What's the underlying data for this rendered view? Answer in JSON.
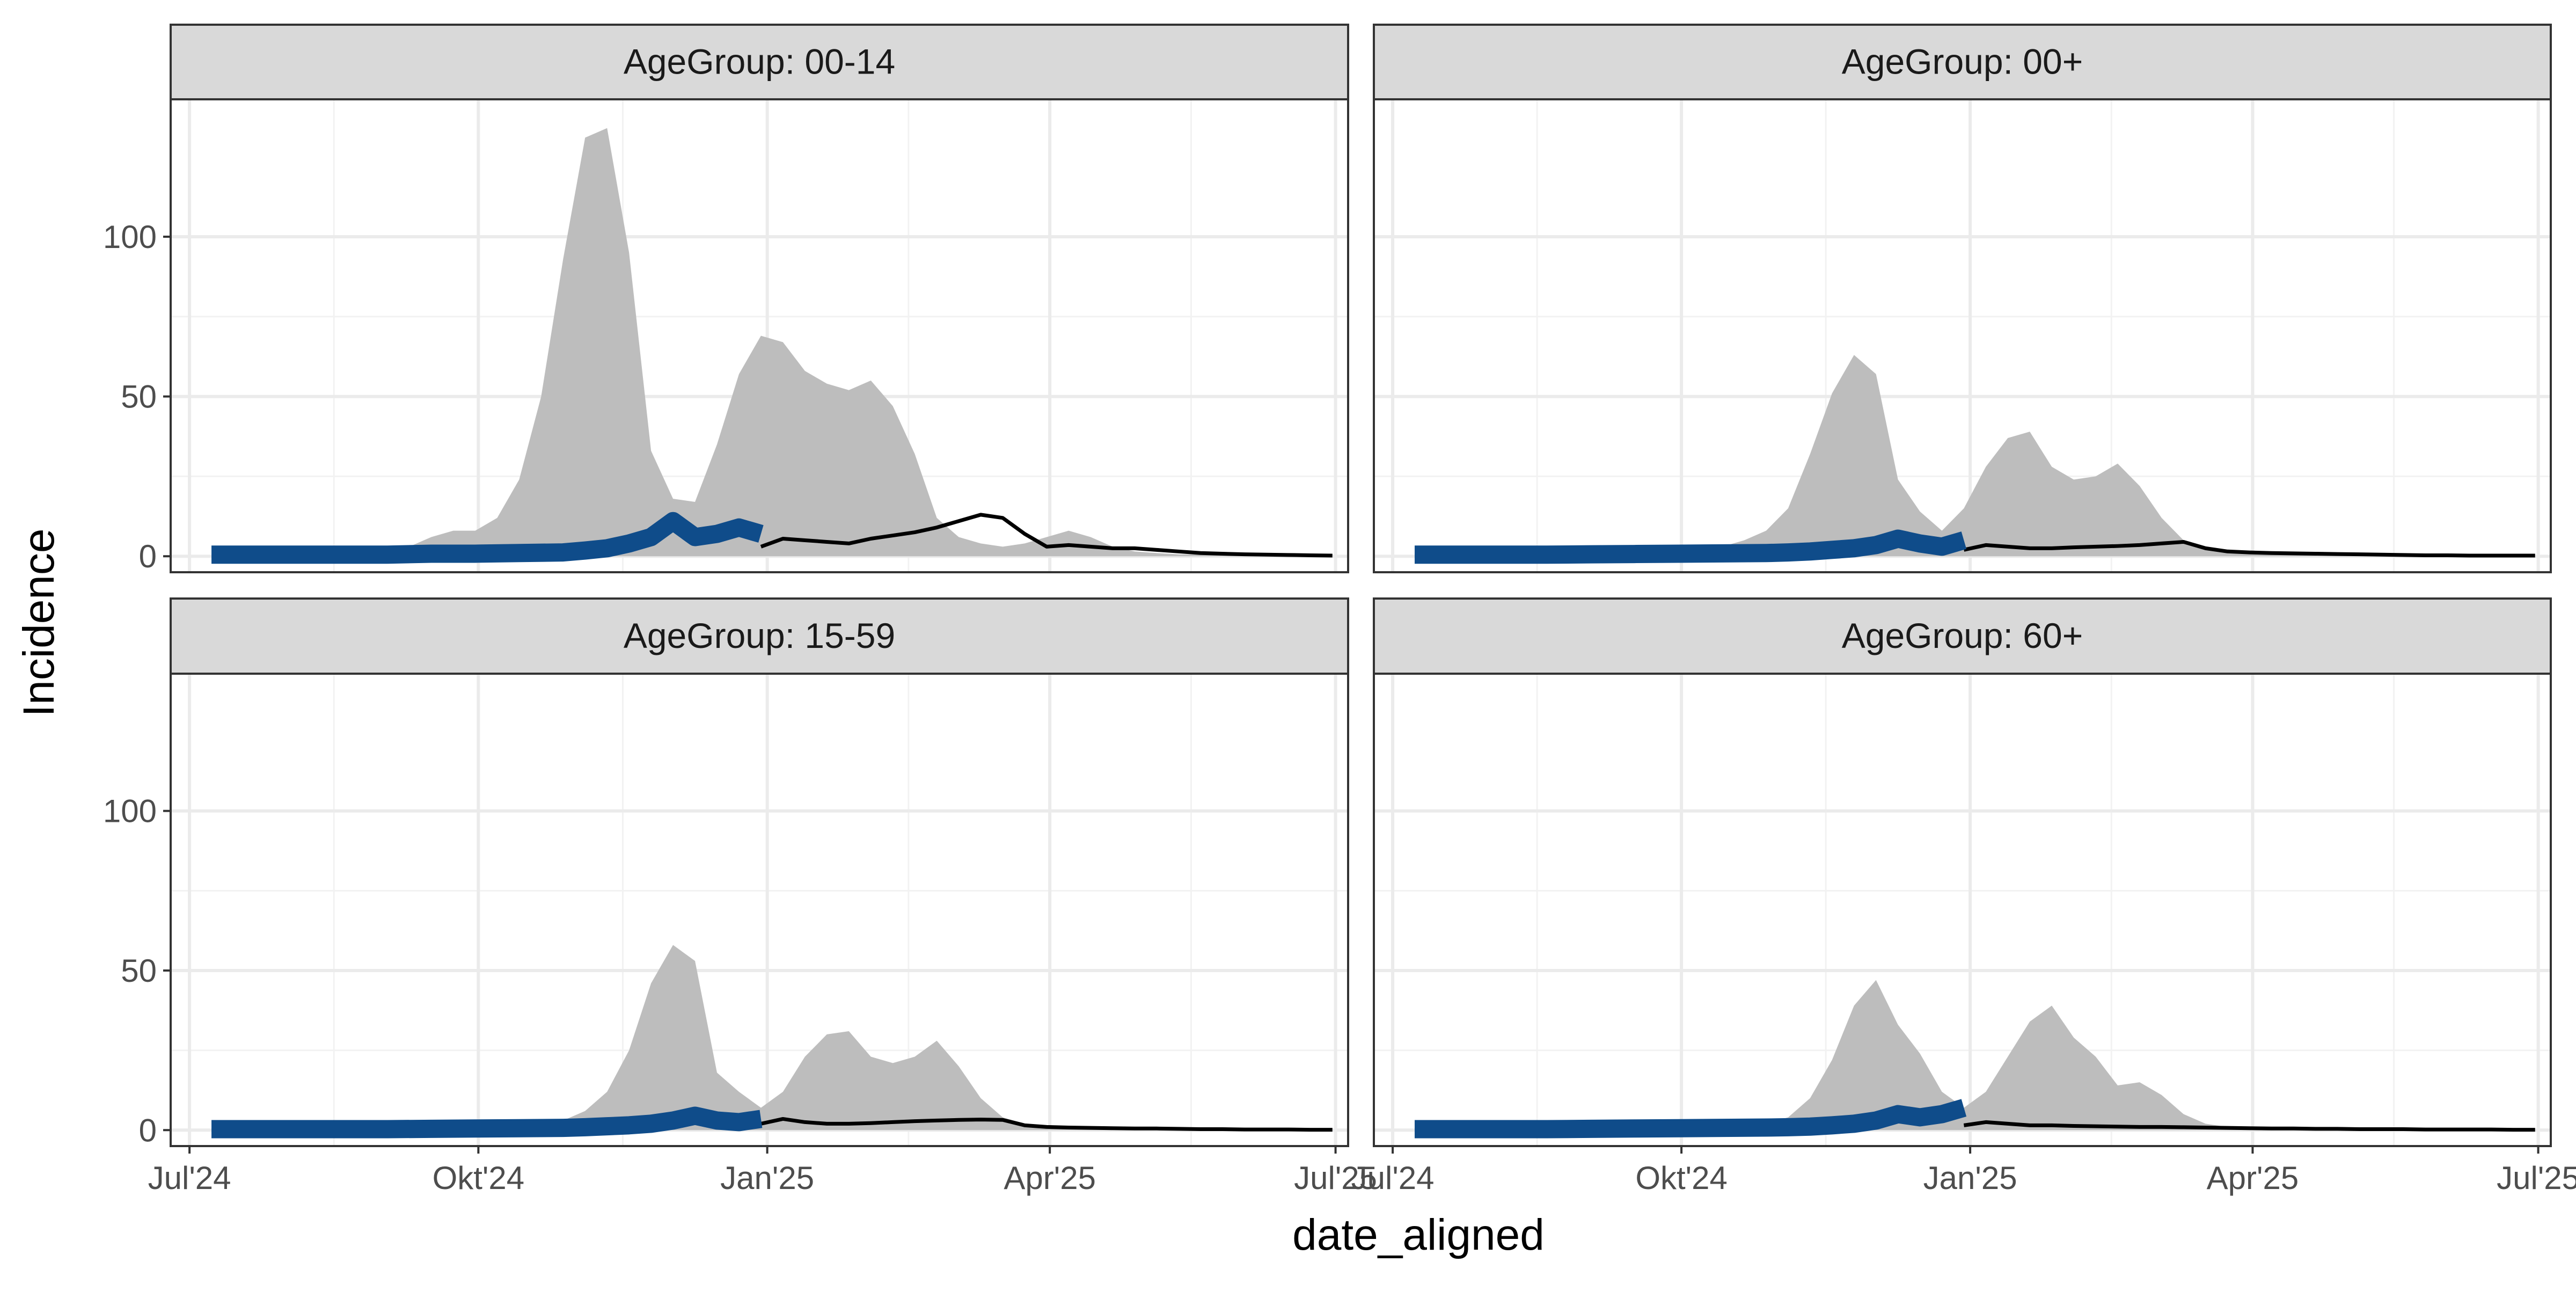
{
  "chart_data": {
    "type": "area",
    "xlabel": "date_aligned",
    "ylabel": "Incidence",
    "ylim": [
      -5,
      143
    ],
    "yticks": [
      0,
      50,
      100
    ],
    "xlim": [
      "2024-06-25",
      "2025-07-05"
    ],
    "xticks": [
      {
        "date": "2024-07-01",
        "label": "Jul'24"
      },
      {
        "date": "2024-10-01",
        "label": "Okt'24"
      },
      {
        "date": "2025-01-01",
        "label": "Jan'25"
      },
      {
        "date": "2025-04-01",
        "label": "Apr'25"
      },
      {
        "date": "2025-07-01",
        "label": "Jul'25"
      }
    ],
    "grid": true,
    "colors": {
      "band_fill": "#bdbdbd",
      "observed_line": "#0f4c8a",
      "median_line": "#000000",
      "panel_border": "#333333",
      "strip_fill": "#d9d9d9",
      "grid": "#ebebeb"
    },
    "panels": [
      {
        "strip_label": "AgeGroup: 00-14",
        "band_dates": [
          "2024-07-29",
          "2024-08-05",
          "2024-08-12",
          "2024-08-19",
          "2024-08-26",
          "2024-09-02",
          "2024-09-09",
          "2024-09-16",
          "2024-09-23",
          "2024-09-30",
          "2024-10-07",
          "2024-10-14",
          "2024-10-21",
          "2024-10-28",
          "2024-11-04",
          "2024-11-11",
          "2024-11-18",
          "2024-11-25",
          "2024-12-02",
          "2024-12-09",
          "2024-12-16",
          "2024-12-23",
          "2024-12-30",
          "2025-01-06",
          "2025-01-13",
          "2025-01-20",
          "2025-01-27",
          "2025-02-03",
          "2025-02-10",
          "2025-02-17",
          "2025-02-24",
          "2025-03-03",
          "2025-03-10",
          "2025-03-17",
          "2025-03-24",
          "2025-03-31",
          "2025-04-07",
          "2025-04-14",
          "2025-04-21",
          "2025-04-28",
          "2025-05-05",
          "2025-05-12",
          "2025-05-19",
          "2025-05-26",
          "2025-06-02",
          "2025-06-09"
        ],
        "band_upper": [
          0.5,
          0.5,
          0.8,
          1,
          1,
          1.5,
          3,
          6,
          8,
          8,
          12,
          24,
          50,
          93,
          131,
          134,
          95,
          33,
          18,
          17,
          35,
          57,
          69,
          67,
          58,
          54,
          52,
          55,
          47,
          32,
          12,
          6,
          4,
          3,
          4,
          6,
          8,
          6,
          3,
          1.5,
          1,
          0.6,
          0.5,
          0.4,
          0.3,
          0.2
        ],
        "observed": {
          "dates": [
            "2024-07-08",
            "2024-07-22",
            "2024-08-05",
            "2024-08-19",
            "2024-09-02",
            "2024-09-16",
            "2024-09-30",
            "2024-10-14",
            "2024-10-28",
            "2024-11-04",
            "2024-11-11",
            "2024-11-18",
            "2024-11-25",
            "2024-12-02",
            "2024-12-09",
            "2024-12-16",
            "2024-12-23",
            "2024-12-30"
          ],
          "values": [
            0.5,
            0.5,
            0.5,
            0.5,
            0.5,
            0.8,
            0.8,
            1,
            1.2,
            1.8,
            2.5,
            4,
            6,
            11,
            6,
            7,
            9,
            7
          ]
        },
        "median": {
          "dates": [
            "2024-12-30",
            "2025-01-06",
            "2025-01-13",
            "2025-01-20",
            "2025-01-27",
            "2025-02-03",
            "2025-02-10",
            "2025-02-17",
            "2025-02-24",
            "2025-03-03",
            "2025-03-10",
            "2025-03-17",
            "2025-03-24",
            "2025-03-31",
            "2025-04-07",
            "2025-04-14",
            "2025-04-21",
            "2025-04-28",
            "2025-05-05",
            "2025-05-12",
            "2025-05-19",
            "2025-05-26",
            "2025-06-02",
            "2025-06-09",
            "2025-06-16",
            "2025-06-23",
            "2025-06-30"
          ],
          "values": [
            3,
            5.5,
            5,
            4.5,
            4,
            5.5,
            6.5,
            7.5,
            9,
            11,
            13,
            12,
            7,
            3,
            3.5,
            3,
            2.5,
            2.5,
            2,
            1.5,
            1,
            0.8,
            0.6,
            0.5,
            0.4,
            0.3,
            0.2
          ]
        }
      },
      {
        "strip_label": "AgeGroup: 00+",
        "band_dates": [
          "2024-09-16",
          "2024-09-23",
          "2024-09-30",
          "2024-10-07",
          "2024-10-14",
          "2024-10-21",
          "2024-10-28",
          "2024-11-04",
          "2024-11-11",
          "2024-11-18",
          "2024-11-25",
          "2024-12-02",
          "2024-12-09",
          "2024-12-16",
          "2024-12-23",
          "2024-12-30",
          "2025-01-06",
          "2025-01-13",
          "2025-01-20",
          "2025-01-27",
          "2025-02-03",
          "2025-02-10",
          "2025-02-17",
          "2025-02-24",
          "2025-03-03",
          "2025-03-10",
          "2025-03-17",
          "2025-03-24",
          "2025-03-31",
          "2025-04-07",
          "2025-04-14",
          "2025-04-21",
          "2025-04-28",
          "2025-05-05",
          "2025-05-12"
        ],
        "band_upper": [
          0.5,
          1,
          1.5,
          2,
          3,
          5,
          8,
          15,
          32,
          51,
          63,
          57,
          24,
          14,
          8,
          15,
          28,
          37,
          39,
          28,
          24,
          25,
          29,
          22,
          12,
          5,
          3,
          2,
          1.5,
          1.5,
          1.2,
          1,
          0.8,
          0.5,
          0.3
        ],
        "observed": {
          "dates": [
            "2024-07-08",
            "2024-07-22",
            "2024-08-05",
            "2024-08-19",
            "2024-09-02",
            "2024-09-16",
            "2024-09-30",
            "2024-10-14",
            "2024-10-28",
            "2024-11-04",
            "2024-11-11",
            "2024-11-18",
            "2024-11-25",
            "2024-12-02",
            "2024-12-09",
            "2024-12-16",
            "2024-12-23",
            "2024-12-30"
          ],
          "values": [
            0.5,
            0.5,
            0.5,
            0.5,
            0.6,
            0.7,
            0.8,
            0.9,
            1,
            1.2,
            1.5,
            2,
            2.5,
            3.5,
            5.5,
            4,
            3,
            5
          ]
        },
        "median": {
          "dates": [
            "2024-12-30",
            "2025-01-06",
            "2025-01-13",
            "2025-01-20",
            "2025-01-27",
            "2025-02-03",
            "2025-02-10",
            "2025-02-17",
            "2025-02-24",
            "2025-03-03",
            "2025-03-10",
            "2025-03-17",
            "2025-03-24",
            "2025-03-31",
            "2025-04-07",
            "2025-04-14",
            "2025-04-21",
            "2025-04-28",
            "2025-05-05",
            "2025-05-12",
            "2025-05-19",
            "2025-05-26",
            "2025-06-02",
            "2025-06-09",
            "2025-06-16",
            "2025-06-23",
            "2025-06-30"
          ],
          "values": [
            2,
            3.5,
            3,
            2.5,
            2.5,
            2.8,
            3,
            3.2,
            3.5,
            4,
            4.5,
            2.5,
            1.5,
            1.2,
            1,
            0.9,
            0.8,
            0.7,
            0.6,
            0.5,
            0.4,
            0.3,
            0.3,
            0.2,
            0.2,
            0.2,
            0.2
          ]
        }
      },
      {
        "strip_label": "AgeGroup: 15-59",
        "band_dates": [
          "2024-09-30",
          "2024-10-07",
          "2024-10-14",
          "2024-10-21",
          "2024-10-28",
          "2024-11-04",
          "2024-11-11",
          "2024-11-18",
          "2024-11-25",
          "2024-12-02",
          "2024-12-09",
          "2024-12-16",
          "2024-12-23",
          "2024-12-30",
          "2025-01-06",
          "2025-01-13",
          "2025-01-20",
          "2025-01-27",
          "2025-02-03",
          "2025-02-10",
          "2025-02-17",
          "2025-02-24",
          "2025-03-03",
          "2025-03-10",
          "2025-03-17",
          "2025-03-24",
          "2025-03-31",
          "2025-04-07",
          "2025-04-14",
          "2025-04-21"
        ],
        "band_upper": [
          0.5,
          1,
          1.5,
          2,
          3,
          6,
          12,
          25,
          46,
          58,
          53,
          18,
          12,
          7,
          12,
          23,
          30,
          31,
          23,
          21,
          23,
          28,
          20,
          10,
          4,
          2,
          1.5,
          1,
          0.5,
          0.3
        ],
        "observed": {
          "dates": [
            "2024-07-08",
            "2024-07-22",
            "2024-08-05",
            "2024-08-19",
            "2024-09-02",
            "2024-09-16",
            "2024-09-30",
            "2024-10-14",
            "2024-10-28",
            "2024-11-04",
            "2024-11-11",
            "2024-11-18",
            "2024-11-25",
            "2024-12-02",
            "2024-12-09",
            "2024-12-16",
            "2024-12-23",
            "2024-12-30"
          ],
          "values": [
            0.3,
            0.3,
            0.3,
            0.3,
            0.3,
            0.4,
            0.5,
            0.6,
            0.7,
            0.9,
            1.2,
            1.5,
            2,
            3,
            4.5,
            3,
            2.5,
            3.5
          ]
        },
        "median": {
          "dates": [
            "2024-12-30",
            "2025-01-06",
            "2025-01-13",
            "2025-01-20",
            "2025-01-27",
            "2025-02-03",
            "2025-02-10",
            "2025-02-17",
            "2025-02-24",
            "2025-03-03",
            "2025-03-10",
            "2025-03-17",
            "2025-03-24",
            "2025-03-31",
            "2025-04-07",
            "2025-04-14",
            "2025-04-21",
            "2025-04-28",
            "2025-05-05",
            "2025-05-12",
            "2025-05-19",
            "2025-05-26",
            "2025-06-02",
            "2025-06-09",
            "2025-06-16",
            "2025-06-23",
            "2025-06-30"
          ],
          "values": [
            2,
            3.5,
            2.5,
            2,
            2,
            2.2,
            2.5,
            2.8,
            3,
            3.2,
            3.3,
            3.2,
            1.5,
            1,
            0.8,
            0.7,
            0.6,
            0.5,
            0.5,
            0.4,
            0.3,
            0.3,
            0.2,
            0.2,
            0.2,
            0.1,
            0.1
          ]
        }
      },
      {
        "strip_label": "AgeGroup: 60+",
        "band_dates": [
          "2024-10-14",
          "2024-10-21",
          "2024-10-28",
          "2024-11-04",
          "2024-11-11",
          "2024-11-18",
          "2024-11-25",
          "2024-12-02",
          "2024-12-09",
          "2024-12-16",
          "2024-12-23",
          "2024-12-30",
          "2025-01-06",
          "2025-01-13",
          "2025-01-20",
          "2025-01-27",
          "2025-02-03",
          "2025-02-10",
          "2025-02-17",
          "2025-02-24",
          "2025-03-03",
          "2025-03-10",
          "2025-03-17",
          "2025-03-24",
          "2025-03-31",
          "2025-04-07",
          "2025-04-14",
          "2025-04-21",
          "2025-04-28"
        ],
        "band_upper": [
          0.5,
          1,
          2,
          4,
          10,
          22,
          39,
          47,
          33,
          24,
          12,
          7,
          12,
          23,
          34,
          39,
          29,
          23,
          14,
          15,
          11,
          5,
          2,
          1,
          0.8,
          0.6,
          0.5,
          0.4,
          0.3
        ],
        "observed": {
          "dates": [
            "2024-07-08",
            "2024-07-22",
            "2024-08-05",
            "2024-08-19",
            "2024-09-02",
            "2024-09-16",
            "2024-09-30",
            "2024-10-14",
            "2024-10-28",
            "2024-11-04",
            "2024-11-11",
            "2024-11-18",
            "2024-11-25",
            "2024-12-02",
            "2024-12-09",
            "2024-12-16",
            "2024-12-23",
            "2024-12-30"
          ],
          "values": [
            0.3,
            0.3,
            0.3,
            0.3,
            0.4,
            0.5,
            0.6,
            0.7,
            0.8,
            0.9,
            1.1,
            1.5,
            2,
            3,
            5,
            4,
            5,
            7
          ]
        },
        "median": {
          "dates": [
            "2024-12-30",
            "2025-01-06",
            "2025-01-13",
            "2025-01-20",
            "2025-01-27",
            "2025-02-03",
            "2025-02-10",
            "2025-02-17",
            "2025-02-24",
            "2025-03-03",
            "2025-03-10",
            "2025-03-17",
            "2025-03-24",
            "2025-03-31",
            "2025-04-07",
            "2025-04-14",
            "2025-04-21",
            "2025-04-28",
            "2025-05-05",
            "2025-05-12",
            "2025-05-19",
            "2025-05-26",
            "2025-06-02",
            "2025-06-09",
            "2025-06-16",
            "2025-06-23",
            "2025-06-30"
          ],
          "values": [
            1.5,
            2.5,
            2,
            1.5,
            1.5,
            1.3,
            1.2,
            1.1,
            1,
            1,
            0.9,
            0.8,
            0.7,
            0.6,
            0.5,
            0.5,
            0.4,
            0.4,
            0.3,
            0.3,
            0.3,
            0.2,
            0.2,
            0.2,
            0.2,
            0.1,
            0.1
          ]
        }
      }
    ]
  }
}
